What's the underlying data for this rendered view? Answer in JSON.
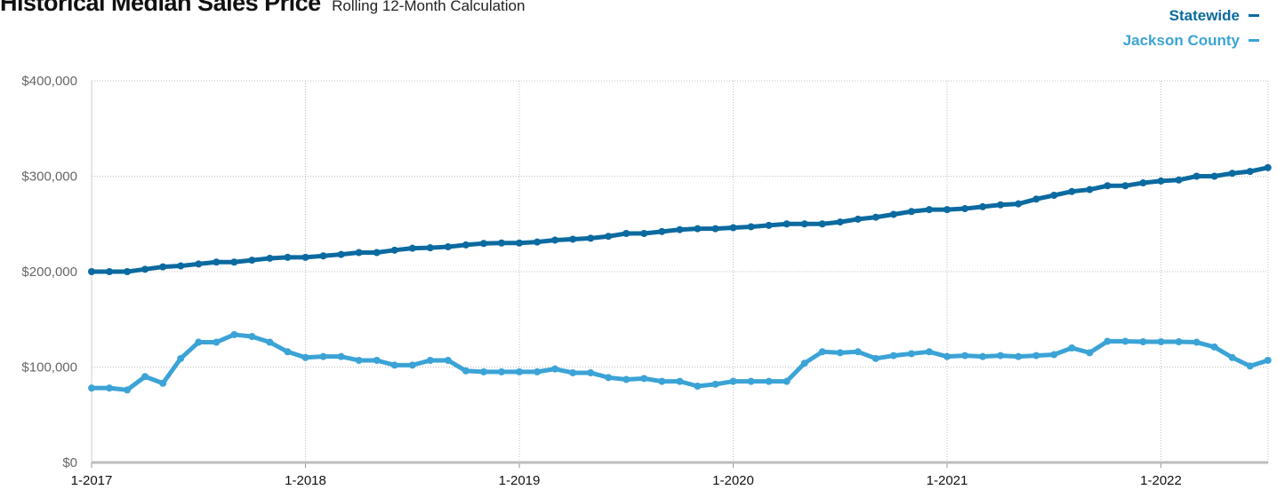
{
  "header": {
    "title": "Historical Median Sales Price",
    "subtitle": "Rolling 12-Month Calculation"
  },
  "legend": [
    {
      "label": "Statewide",
      "color": "#0b6aa0"
    },
    {
      "label": "Jackson County",
      "color": "#3ba3d6"
    }
  ],
  "chart_data": {
    "type": "line",
    "x_start": "1-2017",
    "x_interval": "monthly",
    "xticks": [
      "1-2017",
      "1-2018",
      "1-2019",
      "1-2020",
      "1-2021",
      "1-2022"
    ],
    "yticks": [
      "$0",
      "$100,000",
      "$200,000",
      "$300,000",
      "$400,000"
    ],
    "ylim": [
      0,
      400000
    ],
    "grid": true,
    "legend_position": "top-right",
    "series": [
      {
        "name": "Statewide",
        "color": "#0b6aa0",
        "values": [
          200000,
          200000,
          200000,
          202500,
          205000,
          206000,
          208000,
          210000,
          210000,
          212000,
          214000,
          215000,
          215000,
          216500,
          218000,
          220000,
          220000,
          222500,
          224500,
          225000,
          226000,
          228000,
          229500,
          230000,
          230000,
          231000,
          233000,
          234000,
          235000,
          237000,
          240000,
          240000,
          242000,
          244000,
          245000,
          245000,
          246000,
          247000,
          248500,
          250000,
          250000,
          250000,
          252000,
          255000,
          257000,
          260000,
          263000,
          265000,
          265000,
          266000,
          268000,
          270000,
          271000,
          276000,
          280000,
          284000,
          286000,
          290000,
          290000,
          293000,
          295000,
          296000,
          300000,
          300000,
          303000,
          305000,
          309000
        ]
      },
      {
        "name": "Jackson County",
        "color": "#3ba3d6",
        "values": [
          78000,
          78000,
          76000,
          90000,
          83000,
          109000,
          126000,
          126000,
          134000,
          132000,
          126000,
          116000,
          110000,
          111000,
          111000,
          107000,
          107000,
          102000,
          102000,
          107000,
          107000,
          96000,
          95000,
          95000,
          95000,
          95000,
          98000,
          94000,
          94000,
          89000,
          87000,
          88000,
          85000,
          85000,
          80000,
          82000,
          85000,
          85000,
          85000,
          85000,
          104000,
          116000,
          115000,
          116000,
          109000,
          112000,
          114000,
          116000,
          111000,
          112000,
          111000,
          112000,
          111000,
          112000,
          113000,
          120000,
          115000,
          127000,
          127000,
          126500,
          126500,
          126500,
          126000,
          121000,
          110000,
          101000,
          107000
        ]
      }
    ]
  }
}
